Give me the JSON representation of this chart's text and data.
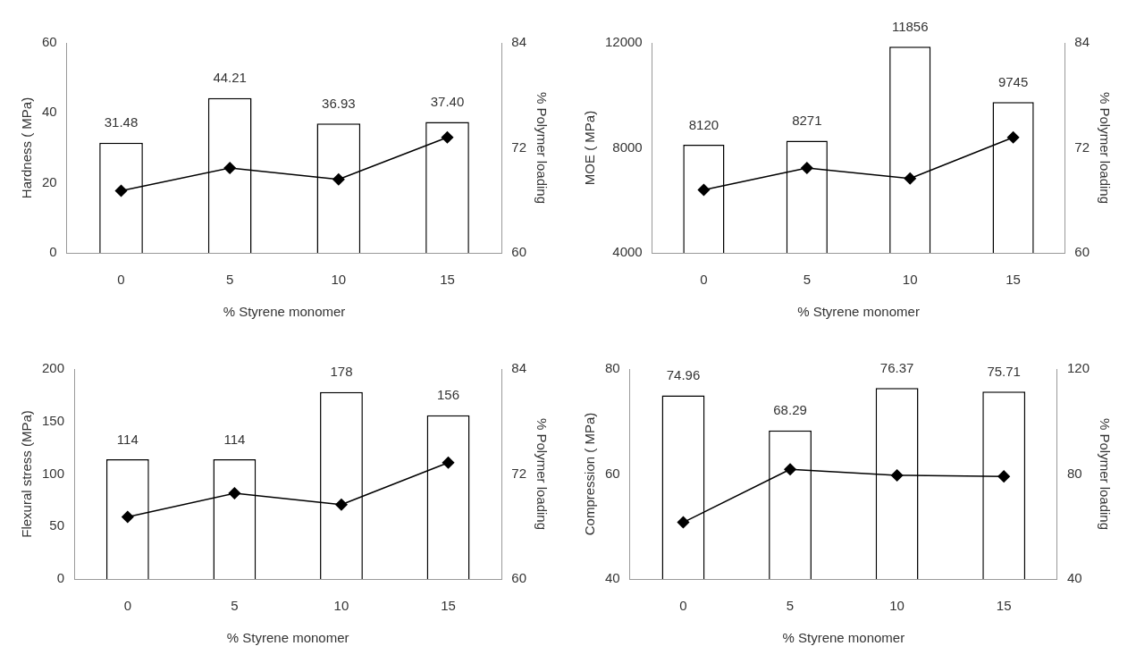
{
  "chart_data": [
    {
      "type": "bar",
      "categories": [
        "0",
        "5",
        "10",
        "15"
      ],
      "xlabel": "% Styrene monomer",
      "ylabel": "Hardness ( MPa)",
      "y2label": "% Polymer loading",
      "ylim": [
        0,
        60
      ],
      "yticks": [
        0,
        20,
        40,
        60
      ],
      "y2lim": [
        60,
        84
      ],
      "y2ticks": [
        60,
        72,
        84
      ],
      "grid": false,
      "legend": false,
      "series": [
        {
          "color": "#ffffff",
          "values": [
            31.48,
            44.21,
            36.93,
            37.4
          ],
          "value_labels": [
            "31.48",
            "44.21",
            "36.93",
            "37.40"
          ]
        },
        {
          "type": "line",
          "axis": "y2",
          "color": "#000000",
          "marker": "diamond",
          "line_style": "solid",
          "values": [
            67.1,
            69.7,
            68.4,
            73.2
          ]
        }
      ]
    },
    {
      "type": "bar",
      "categories": [
        "0",
        "5",
        "10",
        "15"
      ],
      "xlabel": "% Styrene monomer",
      "ylabel": "MOE ( MPa)",
      "y2label": "% Polymer loading",
      "ylim": [
        4000,
        12000
      ],
      "yticks": [
        4000,
        8000,
        12000
      ],
      "y2lim": [
        60,
        84
      ],
      "y2ticks": [
        60,
        72,
        84
      ],
      "grid": false,
      "legend": false,
      "series": [
        {
          "color": "#ffffff",
          "values": [
            8120,
            8271,
            11856,
            9745
          ],
          "value_labels": [
            "8120",
            "8271",
            "11856",
            "9745"
          ]
        },
        {
          "type": "line",
          "axis": "y2",
          "color": "#000000",
          "marker": "diamond",
          "line_style": "solid",
          "values": [
            67.2,
            69.7,
            68.5,
            73.2
          ]
        }
      ]
    },
    {
      "type": "bar",
      "categories": [
        "0",
        "5",
        "10",
        "15"
      ],
      "xlabel": "% Styrene monomer",
      "ylabel": "Flexural stress (MPa)",
      "y2label": "% Polymer loading",
      "ylim": [
        0,
        200
      ],
      "yticks": [
        0,
        50,
        100,
        150,
        200
      ],
      "y2lim": [
        60,
        84
      ],
      "y2ticks": [
        60,
        72,
        84
      ],
      "grid": false,
      "legend": false,
      "series": [
        {
          "color": "#ffffff",
          "values": [
            114,
            114,
            178,
            156
          ],
          "value_labels": [
            "114",
            "114",
            "178",
            "156"
          ]
        },
        {
          "type": "line",
          "axis": "y2",
          "color": "#000000",
          "marker": "diamond",
          "line_style": "solid",
          "values": [
            67.1,
            69.8,
            68.5,
            73.3
          ]
        }
      ]
    },
    {
      "type": "bar",
      "categories": [
        "0",
        "5",
        "10",
        "15"
      ],
      "xlabel": "% Styrene monomer",
      "ylabel": "Compression ( MPa)",
      "y2label": "% Polymer loading",
      "ylim": [
        40,
        80
      ],
      "yticks": [
        40,
        60,
        80
      ],
      "y2lim": [
        40,
        120
      ],
      "y2ticks": [
        40,
        80,
        120
      ],
      "grid": false,
      "legend": false,
      "series": [
        {
          "color": "#ffffff",
          "values": [
            74.96,
            68.29,
            76.37,
            75.71
          ],
          "value_labels": [
            "74.96",
            "68.29",
            "76.37",
            "75.71"
          ]
        },
        {
          "type": "line",
          "axis": "y2",
          "color": "#000000",
          "marker": "diamond",
          "line_style": "solid",
          "values": [
            61.6,
            81.8,
            79.5,
            79.1
          ]
        }
      ]
    }
  ]
}
